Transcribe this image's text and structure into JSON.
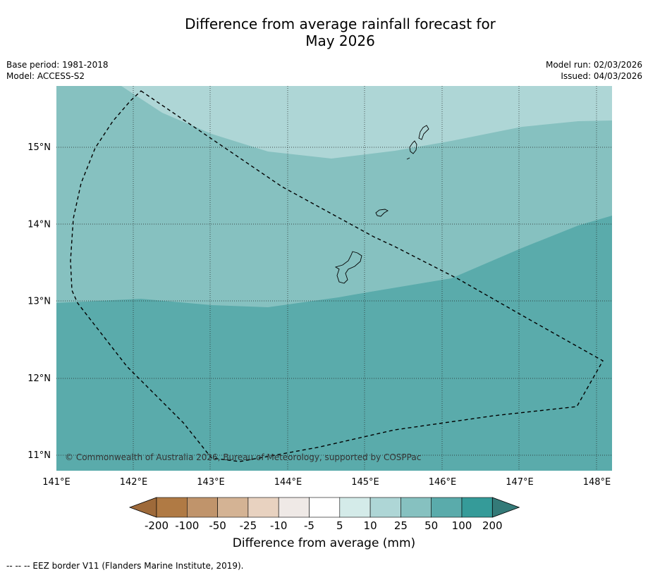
{
  "header": {
    "title_line1": "Difference from average rainfall forecast for",
    "title_line2": "May 2026",
    "base_period": "Base period: 1981-2018",
    "model": "Model: ACCESS-S2",
    "model_run": "Model run: 02/03/2026",
    "issued": "Issued: 04/03/2026"
  },
  "map": {
    "lon_range": [
      141,
      148.2
    ],
    "lat_range": [
      10.8,
      15.8
    ],
    "lon_ticks": [
      "141°E",
      "142°E",
      "143°E",
      "144°E",
      "145°E",
      "146°E",
      "147°E",
      "148°E"
    ],
    "lat_ticks": [
      "15°N",
      "14°N",
      "13°N",
      "12°N",
      "11°N"
    ],
    "copyright": "© Commonwealth of Australia 2026, Bureau of Meteorology, supported by COSPPac"
  },
  "colorbar": {
    "labels": [
      "-200",
      "-100",
      "-50",
      "-25",
      "-10",
      "-5",
      "5",
      "10",
      "25",
      "50",
      "100",
      "200"
    ],
    "colors": [
      "#9e6a3a",
      "#b07a44",
      "#c0946b",
      "#d4b394",
      "#e8d2c0",
      "#efe9e6",
      "#ffffff",
      "#d4ebe9",
      "#aed6d6",
      "#86c1c0",
      "#5aabab",
      "#359b99",
      "#347a78"
    ],
    "label": "Difference from average (mm)"
  },
  "footnote": "--  --  -- EEZ border V11 (Flanders Marine Institute, 2019)."
}
